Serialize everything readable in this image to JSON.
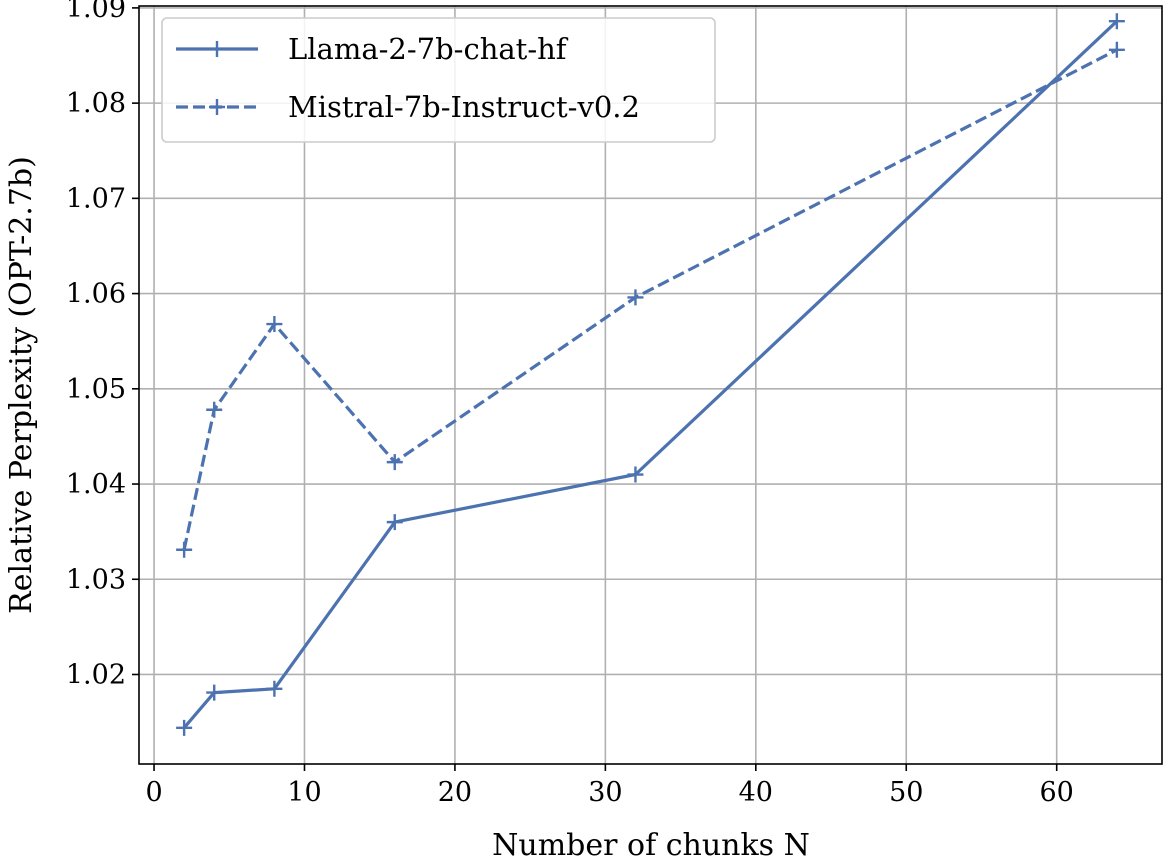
{
  "chart_data": {
    "type": "line",
    "title": "",
    "xlabel": "Number of chunks N",
    "ylabel": "Relative Perplexity (OPT-2.7b)",
    "xlim": [
      -1,
      67
    ],
    "ylim": [
      1.0106,
      1.0902
    ],
    "xticks": [
      0,
      10,
      20,
      30,
      40,
      50,
      60
    ],
    "xtick_labels": [
      "0",
      "10",
      "20",
      "30",
      "40",
      "50",
      "60"
    ],
    "yticks": [
      1.02,
      1.03,
      1.04,
      1.05,
      1.06,
      1.07,
      1.08,
      1.09
    ],
    "ytick_labels": [
      "1.02",
      "1.03",
      "1.04",
      "1.05",
      "1.06",
      "1.07",
      "1.08",
      "1.09"
    ],
    "grid": true,
    "legend_position": "top-left",
    "marker": "+",
    "series": [
      {
        "name": "Llama-2-7b-chat-hf",
        "style": "solid",
        "color": "#4c72b0",
        "x": [
          2,
          4,
          8,
          16,
          32,
          64
        ],
        "y": [
          1.0144,
          1.0181,
          1.0185,
          1.036,
          1.041,
          1.0886
        ]
      },
      {
        "name": "Mistral-7b-Instruct-v0.2",
        "style": "dashed",
        "color": "#4c72b0",
        "x": [
          2,
          4,
          8,
          16,
          32,
          64
        ],
        "y": [
          1.0331,
          1.0478,
          1.0568,
          1.0423,
          1.0596,
          1.0856
        ]
      }
    ]
  }
}
